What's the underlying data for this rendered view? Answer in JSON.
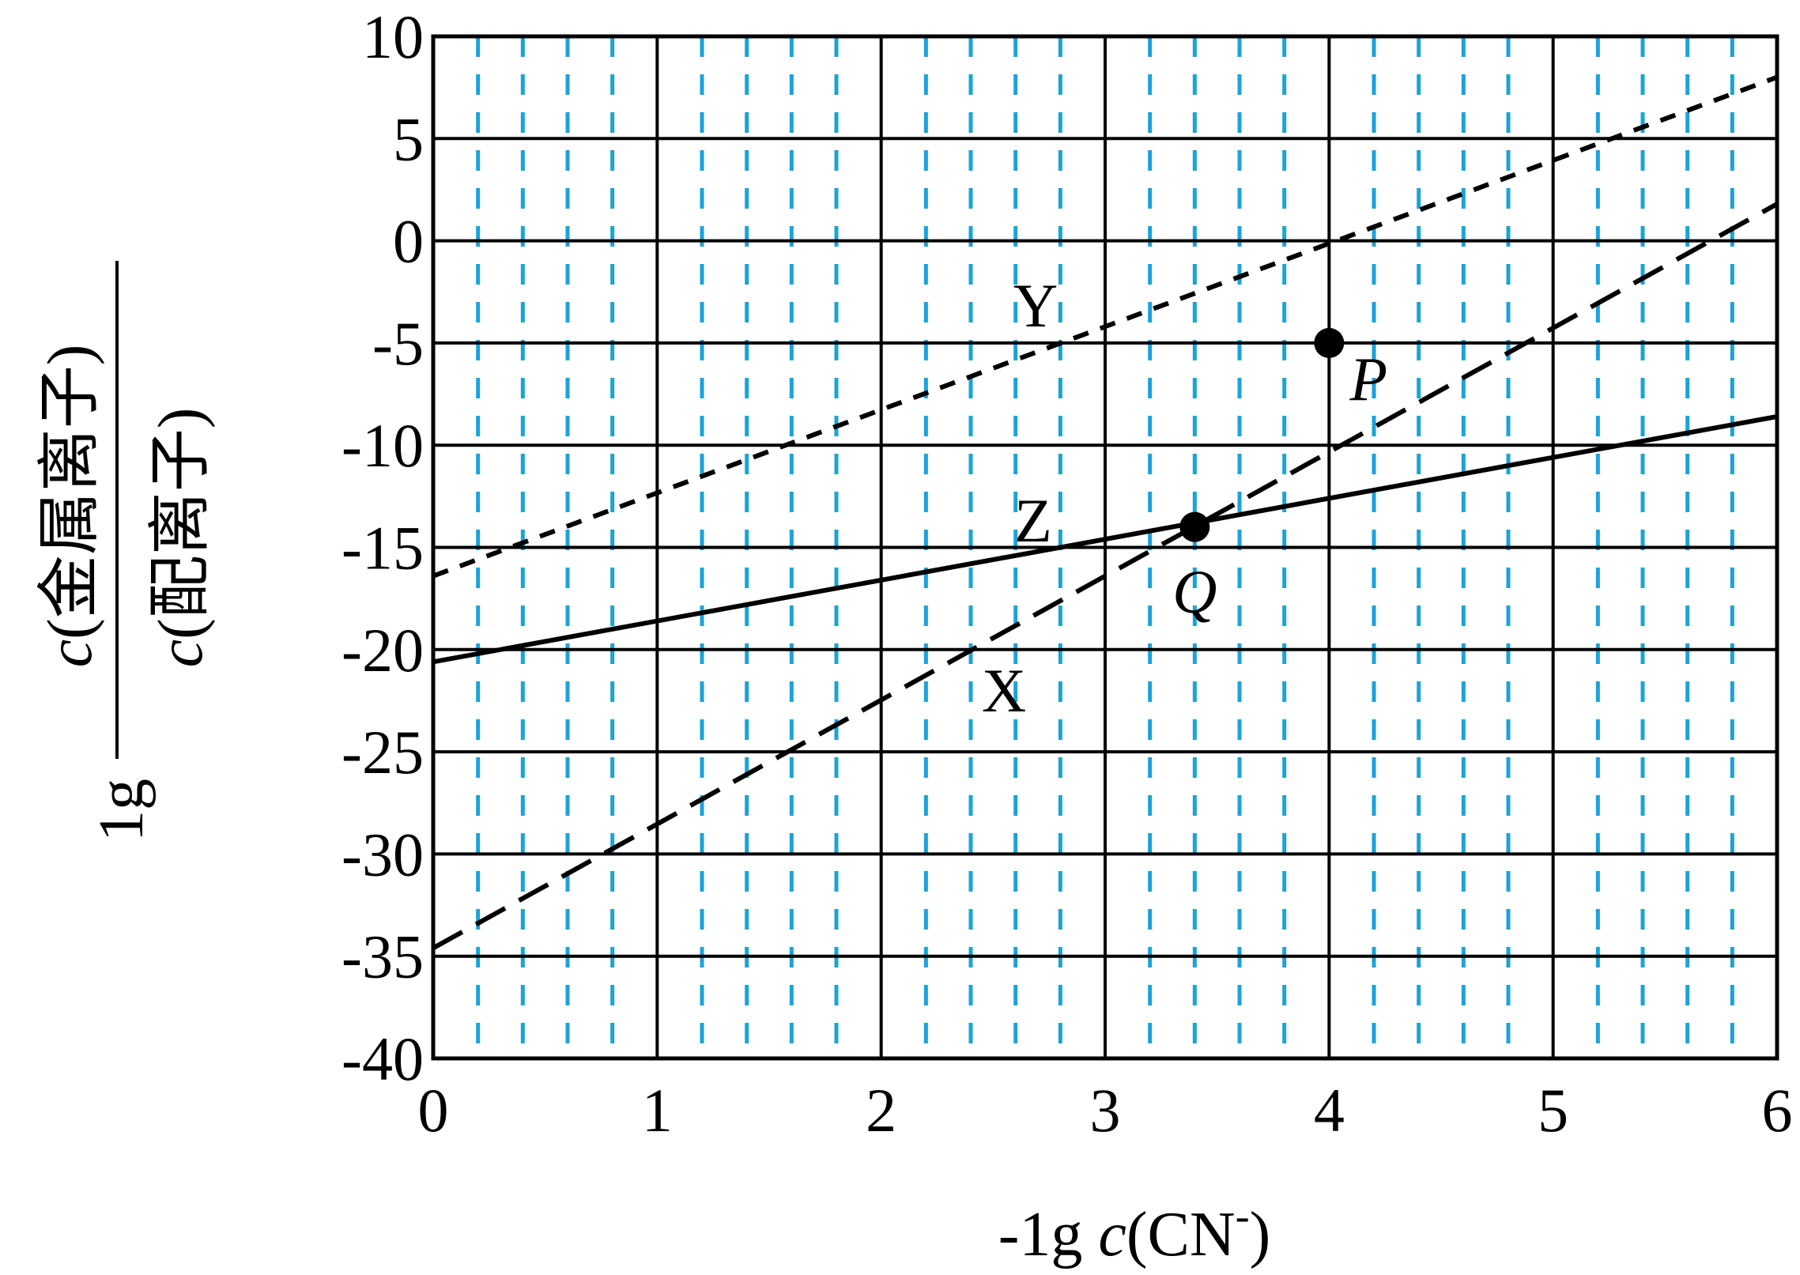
{
  "chart_data": {
    "type": "line",
    "x": [
      0,
      6
    ],
    "xlim": [
      0,
      6
    ],
    "ylim": [
      -40,
      10
    ],
    "xticks": [
      "0",
      "1",
      "2",
      "3",
      "4",
      "5",
      "6"
    ],
    "yticks": [
      "10",
      "5",
      "0",
      "-5",
      "-10",
      "-15",
      "-20",
      "-25",
      "-30",
      "-35",
      "-40"
    ],
    "xlabel": {
      "pre": "-1g ",
      "c": "c",
      "body": "(CN",
      "sup": "-",
      "close": ")"
    },
    "ylabel": {
      "prefix": "1g",
      "numerator_c": "c",
      "numerator": "(金属离子)",
      "denominator_c": "c",
      "denominator": "(配离子)"
    },
    "series": [
      {
        "name": "Y",
        "style": "short-dash",
        "values": [
          -16.4,
          8.0
        ]
      },
      {
        "name": "X",
        "style": "long-dash",
        "values": [
          -34.6,
          1.8
        ]
      },
      {
        "name": "Z",
        "style": "solid",
        "values": [
          -20.6,
          -8.6
        ]
      }
    ],
    "points": [
      {
        "label": "P",
        "x": 4.0,
        "y": -5.0
      },
      {
        "label": "Q",
        "x": 3.4,
        "y": -14.0
      }
    ],
    "grid": true,
    "minor_grid": "dashed-blue-vertical",
    "colors": {
      "major_grid": "#000000",
      "minor_grid": "#1aa3d9",
      "lines": "#000000"
    }
  }
}
